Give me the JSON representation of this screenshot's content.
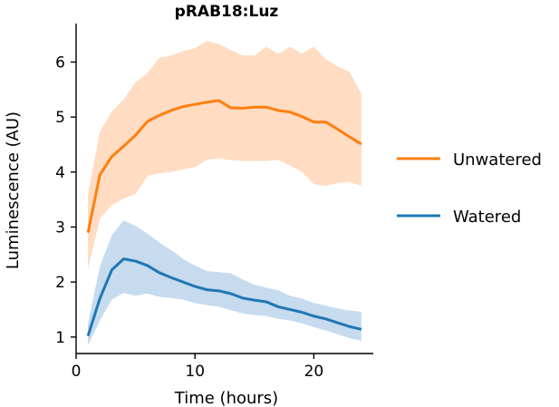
{
  "chart_data": {
    "type": "line",
    "title": "pRAB18:Luz",
    "xlabel": "Time (hours)",
    "ylabel": "Luminescence (AU)",
    "xlim": [
      0,
      25
    ],
    "ylim": [
      0.7,
      6.7
    ],
    "xticks": [
      0,
      10,
      20
    ],
    "yticks": [
      1,
      2,
      3,
      4,
      5,
      6
    ],
    "grid": false,
    "legend_position": "right",
    "x": [
      1,
      2,
      3,
      4,
      5,
      6,
      7,
      8,
      9,
      10,
      11,
      12,
      13,
      14,
      15,
      16,
      17,
      18,
      19,
      20,
      21,
      22,
      23,
      24
    ],
    "series": [
      {
        "name": "Unwatered",
        "color": "#ff7f0e",
        "band_color": "#ffdcc2",
        "values": [
          2.9,
          3.95,
          4.28,
          4.47,
          4.67,
          4.92,
          5.03,
          5.12,
          5.19,
          5.23,
          5.27,
          5.3,
          5.17,
          5.16,
          5.18,
          5.18,
          5.12,
          5.09,
          5.01,
          4.91,
          4.91,
          4.78,
          4.64,
          4.51
        ],
        "upper": [
          3.6,
          4.73,
          5.1,
          5.32,
          5.63,
          5.8,
          6.08,
          6.12,
          6.2,
          6.25,
          6.38,
          6.33,
          6.22,
          6.12,
          6.12,
          6.28,
          6.15,
          6.28,
          6.15,
          6.28,
          6.05,
          5.92,
          5.82,
          5.42
        ],
        "lower": [
          2.25,
          3.15,
          3.4,
          3.52,
          3.6,
          3.93,
          3.98,
          4.0,
          4.05,
          4.09,
          4.22,
          4.25,
          4.22,
          4.2,
          4.2,
          4.2,
          4.22,
          4.12,
          4.0,
          3.78,
          3.75,
          3.8,
          3.82,
          3.75
        ]
      },
      {
        "name": "Watered",
        "color": "#1f77b4",
        "band_color": "#c6dbee",
        "values": [
          1.02,
          1.7,
          2.22,
          2.42,
          2.38,
          2.3,
          2.17,
          2.08,
          2.0,
          1.92,
          1.86,
          1.84,
          1.79,
          1.71,
          1.67,
          1.64,
          1.55,
          1.5,
          1.45,
          1.38,
          1.33,
          1.26,
          1.19,
          1.14
        ],
        "upper": [
          1.25,
          2.28,
          2.85,
          3.12,
          3.02,
          2.88,
          2.72,
          2.58,
          2.42,
          2.3,
          2.2,
          2.18,
          2.16,
          2.05,
          1.95,
          1.9,
          1.85,
          1.75,
          1.7,
          1.62,
          1.57,
          1.52,
          1.48,
          1.46
        ],
        "lower": [
          0.85,
          1.3,
          1.68,
          1.8,
          1.75,
          1.79,
          1.73,
          1.71,
          1.68,
          1.62,
          1.58,
          1.55,
          1.49,
          1.43,
          1.4,
          1.38,
          1.33,
          1.3,
          1.25,
          1.18,
          1.12,
          1.05,
          0.98,
          0.93
        ]
      }
    ]
  }
}
